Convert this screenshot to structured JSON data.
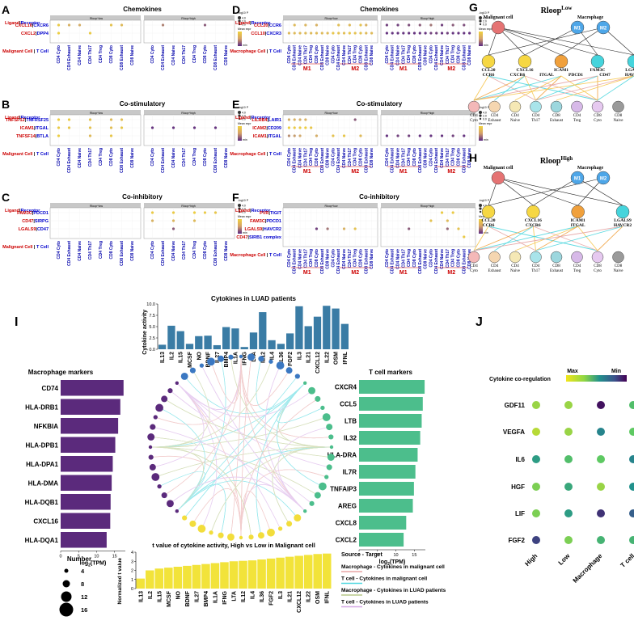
{
  "panels": {
    "A": {
      "letter": "A",
      "title": "Chemokines",
      "pairs": [
        "CXCL16",
        "CXCR6",
        "CXCL2",
        "DPP4"
      ],
      "left": "Malignant Cell",
      "right": "T Cell"
    },
    "B": {
      "letter": "B",
      "title": "Co-stimulatory",
      "pairs": [
        "TNFSF12",
        "TNFRSF25",
        "ICAM1",
        "ITGAL",
        "TNFSF14",
        "BTLA"
      ],
      "left": "Malignant Cell",
      "right": "T Cell"
    },
    "C": {
      "letter": "C",
      "title": "Co-inhibitory",
      "pairs": [
        "FAM3C",
        "PDCD1",
        "CD47",
        "SIRPG",
        "LGALS9",
        "CD47"
      ],
      "left": "Malignant Cell",
      "right": "T Cell"
    },
    "D": {
      "letter": "D",
      "title": "Chemokines",
      "pairs": [
        "CCL20",
        "CCR6",
        "CCL10",
        "CXCR3"
      ],
      "left": "Macrophage Cell",
      "right": "T Cell"
    },
    "E": {
      "letter": "E",
      "title": "Co-stimulatory",
      "pairs": [
        "LILRB4",
        "LAIR1",
        "ICAM2",
        "CD209",
        "ICAM1",
        "ITGAL"
      ],
      "left": "Macrophage Cell",
      "right": "T Cell"
    },
    "F": {
      "letter": "F",
      "title": "Co-inhibitory",
      "pairs": [
        "PVR",
        "TIGIT",
        "FAM3C",
        "PDCD1",
        "LGALS9",
        "HAVCR2",
        "CD47",
        "SIRB1 complex"
      ],
      "left": "Macrophage Cell",
      "right": "T Cell"
    }
  },
  "common": {
    "ligand": "Ligand",
    "receptor": "Receptor",
    "sep": "|",
    "low_strip": "Rloop^low",
    "high_strip": "Rloop^high",
    "legend_title": "-log10 P",
    "legend_vals": [
      "4.0",
      "2.0",
      "0.0"
    ],
    "legend_mean": "Mean expr",
    "legend_min": "min",
    "tcells": [
      "CD4 Cyto",
      "CD4 Exhaust",
      "CD4 Naive",
      "CD4 Th17",
      "CD4 Treg",
      "CD8 Cyto",
      "CD8 Exhaust",
      "CD8 Naive"
    ],
    "m1": "M1",
    "m2": "M2"
  },
  "networks": {
    "G": {
      "letter": "G",
      "title": "Rloop",
      "sup": "Low",
      "malignant": "Malignant cell",
      "macrophage": "Macrophage",
      "m1": "M1",
      "m2": "M2",
      "ligands": [
        "CCL20",
        "CXCL16",
        "ICAM1",
        "FAM3C",
        "LGALS9"
      ],
      "receptors": [
        "CCR6",
        "CXCR6",
        "ITGAL",
        "PDCD1",
        "CD47",
        "HAVCR2"
      ],
      "tcells": [
        [
          "CD4",
          "Cyto"
        ],
        [
          "CD4",
          "Exhaust"
        ],
        [
          "CD4",
          "Naive"
        ],
        [
          "CD4",
          "Th17"
        ],
        [
          "CD8",
          "Exhaust"
        ],
        [
          "CD4",
          "Treg"
        ],
        [
          "CD8",
          "Cyto"
        ],
        [
          "CD8",
          "Naive"
        ]
      ]
    },
    "H": {
      "letter": "H",
      "title": "Rloop",
      "sup": "High",
      "malignant": "Malignant cell",
      "macrophage": "Macrophage",
      "m1": "M1",
      "m2": "M2",
      "ligands": [
        "CCL20",
        "CXCL16",
        "ICAM1",
        "LGALS9"
      ],
      "receptors": [
        "CCR6",
        "CXCR6",
        "ITGAL",
        "HAVCR2"
      ],
      "tcells": [
        [
          "CD4",
          "Cyto"
        ],
        [
          "CD4",
          "Exhaust"
        ],
        [
          "CD4",
          "Naive"
        ],
        [
          "CD4",
          "Th17"
        ],
        [
          "CD8",
          "Exhaust"
        ],
        [
          "CD4",
          "Treg"
        ],
        [
          "CD8",
          "Cyto"
        ],
        [
          "CD8",
          "Naive"
        ]
      ]
    }
  },
  "panel_I": {
    "letter": "I",
    "top_title": "Cytokines in LUAD patients",
    "top_ylabel": "Cytokine activity",
    "top_ylim": [
      0,
      10
    ],
    "top_ticks": [
      "0.0",
      "2.5",
      "5.0",
      "7.5",
      "10.0"
    ],
    "bottom_title": "t value of cytokine activity, High vs Low in Malignant cell",
    "bottom_ylabel": "Normalized t value",
    "bottom_ylim": [
      0,
      4
    ],
    "bottom_ticks": [
      "0",
      "1",
      "2",
      "3",
      "4"
    ],
    "mac_title": "Macrophage markers",
    "tcell_title": "T cell markers",
    "xlabel_pre": "log",
    "xlabel_sub": "2",
    "xlabel_post": "(TPM)",
    "mac_ticks": [
      "0",
      "5",
      "10",
      "15"
    ],
    "tcell_ticks": [
      "0",
      "5",
      "10",
      "15"
    ],
    "number_title": "Number",
    "number_vals": [
      "4",
      "8",
      "12",
      "16"
    ],
    "legend_title": "Source - Target",
    "legend_items": [
      "Macrophage - Cytokines in malignant cell",
      "T cell - Cytokines in malignant cell",
      "Macrophage - Cytokines in LUAD patients",
      "T cell - Cytokines in LUAD patients"
    ],
    "legend_colors": [
      "#e8a6a6",
      "#4fd8e0",
      "#b9c98a",
      "#d5a8e6"
    ]
  },
  "chart_data": [
    {
      "type": "bar",
      "title": "Cytokines in LUAD patients",
      "ylabel": "Cytokine activity",
      "ylim": [
        0,
        10
      ],
      "categories": [
        "IL13",
        "IL2",
        "IL15",
        "MCSF",
        "NO",
        "BDNF",
        "IL27",
        "BMP4",
        "IL1A",
        "IFNG",
        "LTA",
        "IL12",
        "IL4",
        "IL36",
        "FGF2",
        "IL3",
        "IL21",
        "CXCL12",
        "IL22",
        "OSM",
        "IFNL"
      ],
      "values": [
        1.0,
        5.2,
        4.0,
        1.2,
        2.9,
        3.0,
        0.9,
        4.9,
        4.6,
        0.5,
        3.7,
        8.2,
        2.0,
        1.2,
        3.5,
        9.5,
        5.1,
        7.2,
        9.6,
        9.0,
        5.6
      ]
    },
    {
      "type": "bar",
      "title": "t value of cytokine activity, High vs Low in Malignant cell",
      "ylabel": "Normalized t value",
      "ylim": [
        0,
        4
      ],
      "categories": [
        "IL13",
        "IL2",
        "IL15",
        "MCSF",
        "NO",
        "BDNF",
        "IL27",
        "BMP4",
        "IL1A",
        "IFNG",
        "LTA",
        "IL12",
        "IL4",
        "IL36",
        "FGF2",
        "IL3",
        "IL21",
        "CXCL12",
        "IL22",
        "OSM",
        "IFNL"
      ],
      "values": [
        1.1,
        2.0,
        2.2,
        2.3,
        2.4,
        2.5,
        2.6,
        2.7,
        2.8,
        2.9,
        3.0,
        3.05,
        3.1,
        3.2,
        3.3,
        3.4,
        3.5,
        3.6,
        3.7,
        3.8,
        3.85
      ]
    },
    {
      "type": "bar",
      "title": "Macrophage markers",
      "xlabel": "log2(TPM)",
      "xlim": [
        0,
        18
      ],
      "categories": [
        "CD74",
        "HLA-DRB1",
        "NFKBIA",
        "HLA-DPB1",
        "HLA-DPA1",
        "HLA-DMA",
        "HLA-DQB1",
        "CXCL16",
        "HLA-DQA1"
      ],
      "values": [
        17.5,
        16.6,
        16.0,
        15.2,
        14.5,
        14.2,
        13.9,
        13.8,
        12.8
      ]
    },
    {
      "type": "bar",
      "title": "T cell markers",
      "xlabel": "log2(TPM)",
      "xlim": [
        0,
        18
      ],
      "categories": [
        "CXCR4",
        "CCL5",
        "LTB",
        "IL32",
        "HLA-DRA",
        "IL7R",
        "TNFAIP3",
        "AREG",
        "CXCL8",
        "CXCL2"
      ],
      "values": [
        17.8,
        17.3,
        17.0,
        16.6,
        15.9,
        15.3,
        14.9,
        14.6,
        12.8,
        12.1
      ]
    },
    {
      "type": "heatmap",
      "title": "Cytokine co-regulation",
      "legend": [
        "Max",
        "Min"
      ],
      "rows": [
        "GDF11",
        "VEGFA",
        "IL6",
        "HGF",
        "LIF",
        "FGF2"
      ],
      "cols": [
        "High",
        "Low",
        "Macrophage",
        "T cell"
      ],
      "values": [
        [
          0.85,
          0.85,
          0.05,
          0.7
        ],
        [
          0.9,
          0.85,
          0.45,
          0.75
        ],
        [
          0.55,
          0.7,
          0.75,
          0.45
        ],
        [
          0.8,
          0.6,
          0.85,
          0.5
        ],
        [
          0.8,
          0.55,
          0.15,
          0.3
        ],
        [
          0.2,
          0.8,
          0.65,
          0.65
        ]
      ]
    }
  ],
  "panel_J": {
    "letter": "J",
    "title": "Cytokine co-regulation",
    "max": "Max",
    "min": "Min"
  }
}
